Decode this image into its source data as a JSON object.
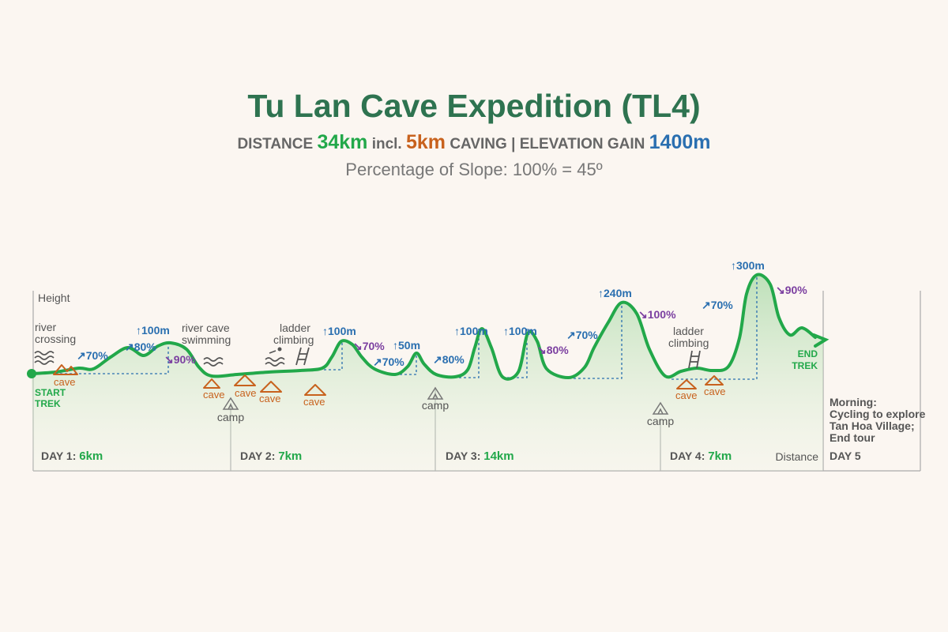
{
  "title": "Tu Lan Cave Expedition (TL4)",
  "subtitle": {
    "distance_label": "DISTANCE",
    "distance": "34km",
    "incl": "incl.",
    "caving": "5km",
    "caving_label": "CAVING",
    "separator": "|",
    "elevation_label": "ELEVATION GAIN",
    "elevation": "1400m"
  },
  "note": "Percentage of Slope: 100% = 45º",
  "axis": {
    "y": "Height",
    "x": "Distance"
  },
  "start": [
    "START",
    "TREK"
  ],
  "end": [
    "END",
    "TREK"
  ],
  "activities": [
    [
      "river",
      "crossing"
    ],
    [
      "river cave",
      "swimming"
    ],
    [
      "ladder",
      "climbing"
    ],
    [
      "ladder",
      "climbing"
    ]
  ],
  "slopes": [
    "↗70%",
    "↗80%",
    "↑100m",
    "↘90%",
    "↑100m",
    "↘70%",
    "↑50m",
    "↗70%",
    "↗80%",
    "↑100m",
    "↑100m",
    "↘80%",
    "↗70%",
    "↑240m",
    "↘100%",
    "↗70%",
    "↑300m",
    "↘90%"
  ],
  "caves": [
    "cave",
    "cave",
    "cave",
    "cave",
    "cave",
    "cave",
    "cave"
  ],
  "camps": [
    "camp",
    "camp",
    "camp"
  ],
  "days": [
    {
      "label": "DAY 1:",
      "distance": "6km"
    },
    {
      "label": "DAY 2:",
      "distance": "7km"
    },
    {
      "label": "DAY 3:",
      "distance": "14km"
    },
    {
      "label": "DAY 4:",
      "distance": "7km"
    },
    {
      "label": "DAY 5"
    }
  ],
  "day5_note": [
    "Morning:",
    "Cycling to explore",
    "Tan Hoa Village;",
    "End tour"
  ]
}
